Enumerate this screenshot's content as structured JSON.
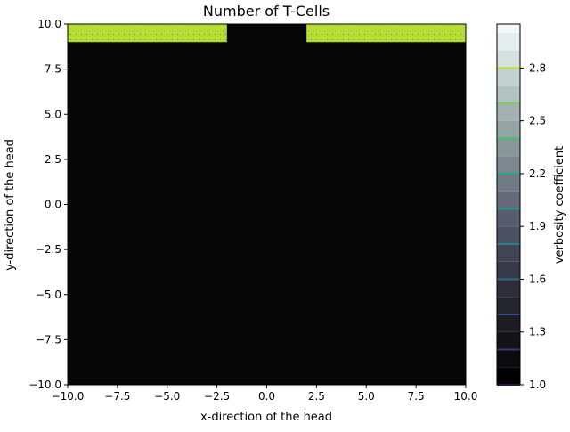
{
  "chart_data": {
    "type": "heatmap",
    "title": "Number of T-Cells",
    "xlabel": "x-direction of the head",
    "ylabel": "y-direction of the head",
    "xlim": [
      -10,
      10
    ],
    "ylim": [
      -10,
      10
    ],
    "x_ticks": [
      -10,
      -7.5,
      -5,
      -2.5,
      0,
      2.5,
      5,
      7.5,
      10
    ],
    "x_tick_labels": [
      "−10.0",
      "−7.5",
      "−5.0",
      "−2.5",
      "0.0",
      "2.5",
      "5.0",
      "7.5",
      "10.0"
    ],
    "y_ticks": [
      10,
      7.5,
      5,
      2.5,
      0,
      -2.5,
      -5,
      -7.5,
      -10
    ],
    "y_tick_labels": [
      "10.0",
      "7.5",
      "5.0",
      "2.5",
      "0.0",
      "−2.5",
      "−5.0",
      "−7.5",
      "−10.0"
    ],
    "background_color": "#060607",
    "regions": [
      {
        "x": [
          -10,
          -2
        ],
        "y": [
          9,
          10
        ],
        "color": "#b6dd2f",
        "value": 2.8
      },
      {
        "x": [
          2,
          10
        ],
        "y": [
          9,
          10
        ],
        "color": "#b6dd2f",
        "value": 2.8
      }
    ],
    "colorbar": {
      "label": "verbosity coefficient",
      "range": [
        1.0,
        3.05
      ],
      "ticks": [
        1.0,
        1.3,
        1.6,
        1.9,
        2.2,
        2.5,
        2.8
      ],
      "tick_labels": [
        "1.0",
        "1.3",
        "1.6",
        "1.9",
        "2.2",
        "2.5",
        "2.8"
      ],
      "levels": [
        {
          "value": 1.05,
          "color": "#000000"
        },
        {
          "value": 1.15,
          "color": "#0b0b0d"
        },
        {
          "value": 1.25,
          "color": "#141418"
        },
        {
          "value": 1.35,
          "color": "#1c1c22"
        },
        {
          "value": 1.45,
          "color": "#25252e"
        },
        {
          "value": 1.55,
          "color": "#2e2e3a"
        },
        {
          "value": 1.65,
          "color": "#383947"
        },
        {
          "value": 1.75,
          "color": "#424455"
        },
        {
          "value": 1.85,
          "color": "#4d4f62"
        },
        {
          "value": 1.95,
          "color": "#585c6e"
        },
        {
          "value": 2.05,
          "color": "#646a79"
        },
        {
          "value": 2.15,
          "color": "#707a85"
        },
        {
          "value": 2.25,
          "color": "#7c878f"
        },
        {
          "value": 2.35,
          "color": "#889599"
        },
        {
          "value": 2.45,
          "color": "#95a3a4"
        },
        {
          "value": 2.55,
          "color": "#a3b2b1"
        },
        {
          "value": 2.65,
          "color": "#b2c2c0"
        },
        {
          "value": 2.75,
          "color": "#c3d2d0"
        },
        {
          "value": 2.85,
          "color": "#d4e1df"
        },
        {
          "value": 2.95,
          "color": "#e5edec"
        },
        {
          "value": 3.05,
          "color": "#f3f7f8"
        }
      ],
      "contour_lines": [
        {
          "value": 1.0,
          "color": "#6a1f8a"
        },
        {
          "value": 1.2,
          "color": "#46317e"
        },
        {
          "value": 1.4,
          "color": "#3b4c8a"
        },
        {
          "value": 1.6,
          "color": "#2f6a8c"
        },
        {
          "value": 1.8,
          "color": "#26828e"
        },
        {
          "value": 2.0,
          "color": "#1f988b"
        },
        {
          "value": 2.2,
          "color": "#22a884"
        },
        {
          "value": 2.4,
          "color": "#44bf70"
        },
        {
          "value": 2.6,
          "color": "#7ad151"
        },
        {
          "value": 2.8,
          "color": "#bddf26"
        }
      ]
    }
  }
}
